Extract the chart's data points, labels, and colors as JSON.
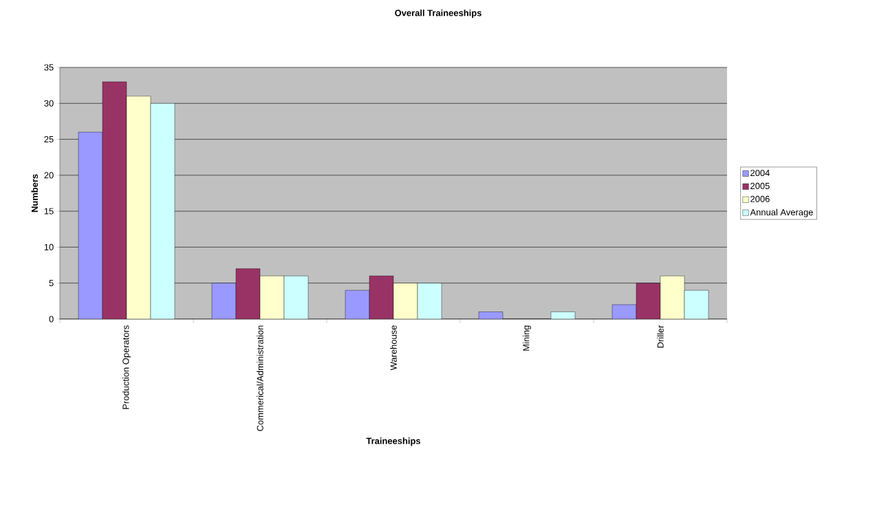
{
  "chart_data": {
    "type": "bar",
    "title": "Overall Traineeships",
    "xlabel": "Traineeships",
    "ylabel": "Numbers",
    "categories": [
      "Production Operators",
      "Commerical/Administration",
      "Warehouse",
      "Mining",
      "Driller"
    ],
    "series": [
      {
        "name": "2004",
        "color": "#9999ff",
        "values": [
          26,
          5,
          4,
          1,
          2
        ]
      },
      {
        "name": "2005",
        "color": "#993366",
        "values": [
          33,
          7,
          6,
          0,
          5
        ]
      },
      {
        "name": "2006",
        "color": "#ffffcc",
        "values": [
          31,
          6,
          5,
          0,
          6
        ]
      },
      {
        "name": "Annual Average",
        "color": "#ccffff",
        "values": [
          30,
          6,
          5,
          1,
          4
        ]
      }
    ],
    "ylim": [
      0,
      35
    ],
    "yticks": [
      0,
      5,
      10,
      15,
      20,
      25,
      30,
      35
    ],
    "grid": "y",
    "legend": "right"
  }
}
